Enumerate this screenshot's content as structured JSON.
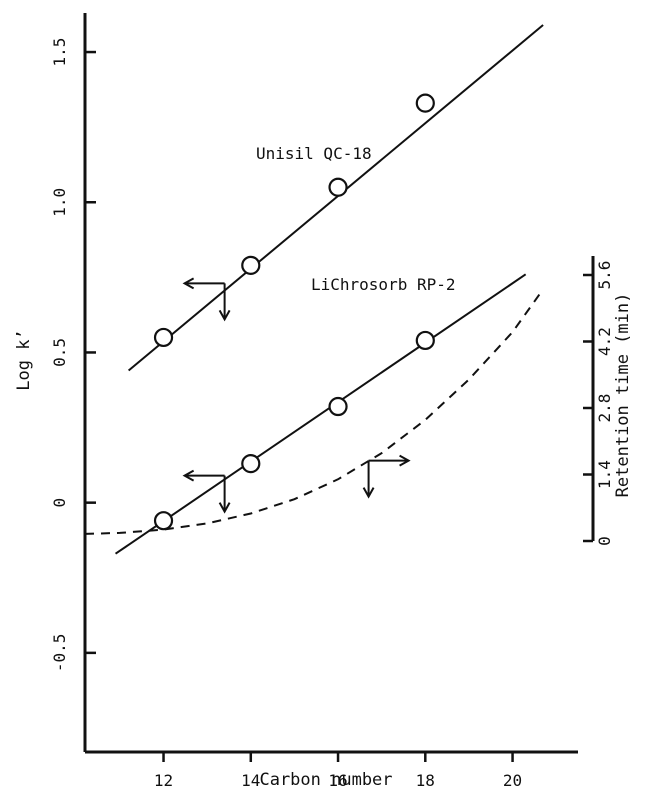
{
  "chart_data": {
    "type": "scatter",
    "xlabel": "Carbon number",
    "ylabel": "Log k’",
    "y2label": "Retention time (min)",
    "xlim": [
      10.2,
      21.5
    ],
    "ylim": [
      -0.83,
      1.63
    ],
    "y2lim": [
      0,
      6.0
    ],
    "x_ticks": [
      12,
      14,
      16,
      18,
      20
    ],
    "y_ticks": [
      -0.5,
      0,
      0.5,
      1.0,
      1.5
    ],
    "y_tick_labels": [
      "-0.5",
      "0",
      "0.5",
      "1.0",
      "1.5"
    ],
    "y2_ticks": [
      0,
      1.4,
      2.8,
      4.2,
      5.6
    ],
    "y2_tick_labels": [
      "0",
      "1.4",
      "2.8",
      "4.2",
      "5.6"
    ],
    "series": [
      {
        "name": "Unisil QC-18",
        "axis": "left",
        "x": [
          12,
          14,
          16,
          18
        ],
        "y": [
          0.55,
          0.79,
          1.05,
          1.33
        ],
        "fit": {
          "x": [
            11.2,
            20.7
          ],
          "y": [
            0.44,
            1.59
          ]
        }
      },
      {
        "name": "LiChrosorb RP-2",
        "axis": "left",
        "x": [
          12,
          14,
          16,
          18
        ],
        "y": [
          -0.06,
          0.13,
          0.32,
          0.54
        ],
        "fit": {
          "x": [
            10.9,
            20.3
          ],
          "y": [
            -0.17,
            0.76
          ]
        }
      },
      {
        "name": "",
        "axis": "right",
        "style": "dashed",
        "x": [
          10.2,
          11,
          12,
          13,
          14,
          15,
          16,
          17,
          18,
          19,
          20,
          20.7
        ],
        "y": [
          0.15,
          0.17,
          0.24,
          0.37,
          0.58,
          0.88,
          1.3,
          1.85,
          2.55,
          3.4,
          4.4,
          5.3
        ]
      }
    ],
    "annotations": [
      {
        "type": "axis-arrow",
        "direction": "left-down",
        "x": 13.4,
        "y": 0.73
      },
      {
        "type": "axis-arrow",
        "direction": "left-down",
        "x": 13.4,
        "y": 0.09
      },
      {
        "type": "axis-arrow",
        "direction": "right-down",
        "x": 16.7,
        "y": 0.14
      }
    ]
  }
}
